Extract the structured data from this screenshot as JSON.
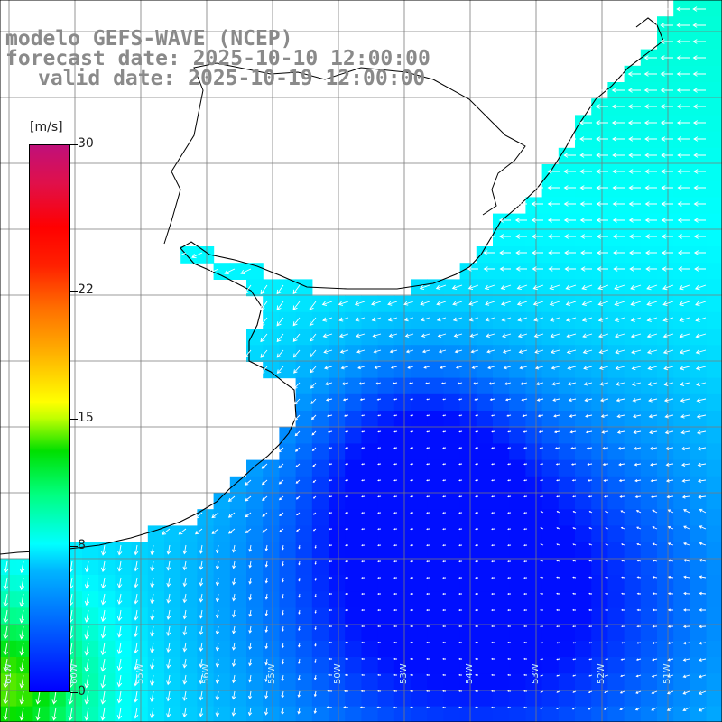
{
  "header": {
    "model_line": "modelo GEFS-WAVE (NCEP)",
    "forecast_line": "forecast date: 2025-10-10 12:00:00",
    "valid_line": "valid date: 2025-10-19 12:00:00"
  },
  "colorbar": {
    "unit": "[m/s]",
    "ticks": [
      {
        "value": 30,
        "label": "30"
      },
      {
        "value": 22,
        "label": "22"
      },
      {
        "value": 15,
        "label": "15"
      },
      {
        "value": 8,
        "label": "8"
      },
      {
        "value": 0,
        "label": "0"
      }
    ],
    "colors": [
      "#0000ff",
      "#00b4ff",
      "#00ffff",
      "#00ff80",
      "#00e000",
      "#ffff00",
      "#ff7000",
      "#ff0000",
      "#c0107a"
    ]
  },
  "axis_labels": [
    "61W",
    "60W",
    "55W",
    "56W",
    "55W",
    "50W",
    "53W",
    "54W",
    "53W",
    "52W",
    "51W",
    "50W"
  ],
  "colors": {
    "land": "#ffffff",
    "coastline": "#000000",
    "grid": "#7a7a7a",
    "arrows": "#ffffff",
    "header_text": "#8a8a8a"
  }
}
